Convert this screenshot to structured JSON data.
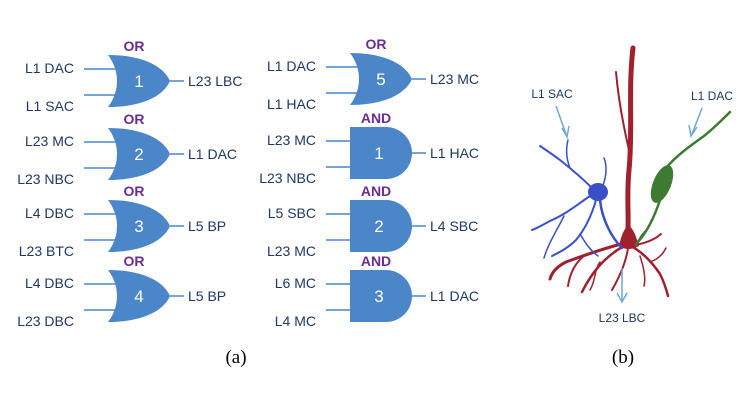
{
  "colors": {
    "gate_fill": "#4a86c8",
    "gate_type_text": "#6b2c91",
    "label_text": "#1f3864",
    "wire": "#4a86c8",
    "arrow": "#6fa8d6",
    "sac_neuron": "#3a50c8",
    "lbc_neuron": "#a0202e",
    "dac_neuron": "#3d7a32"
  },
  "panel_a": {
    "caption": "(a)",
    "gates": [
      {
        "type": "OR",
        "number": "1",
        "inputs": [
          "L1 DAC",
          "L1 SAC"
        ],
        "output": "L23 LBC"
      },
      {
        "type": "OR",
        "number": "2",
        "inputs": [
          "L23 MC",
          "L23 NBC"
        ],
        "output": "L1 DAC"
      },
      {
        "type": "OR",
        "number": "3",
        "inputs": [
          "L4 DBC",
          "L23 BTC"
        ],
        "output": "L5 BP"
      },
      {
        "type": "OR",
        "number": "4",
        "inputs": [
          "L4 DBC",
          "L23 DBC"
        ],
        "output": "L5 BP"
      },
      {
        "type": "OR",
        "number": "5",
        "inputs": [
          "L1 DAC",
          "L1 HAC"
        ],
        "output": "L23 MC"
      },
      {
        "type": "AND",
        "number": "1",
        "inputs": [
          "L23 MC",
          "L23 NBC"
        ],
        "output": "L1 HAC"
      },
      {
        "type": "AND",
        "number": "2",
        "inputs": [
          "L5 SBC",
          "L23 MC"
        ],
        "output": "L4 SBC"
      },
      {
        "type": "AND",
        "number": "3",
        "inputs": [
          "L6 MC",
          "L4 MC"
        ],
        "output": "L1 DAC"
      }
    ]
  },
  "panel_b": {
    "caption": "(b)",
    "labels": {
      "left": "L1 SAC",
      "right": "L1 DAC",
      "bottom": "L23 LBC"
    }
  }
}
